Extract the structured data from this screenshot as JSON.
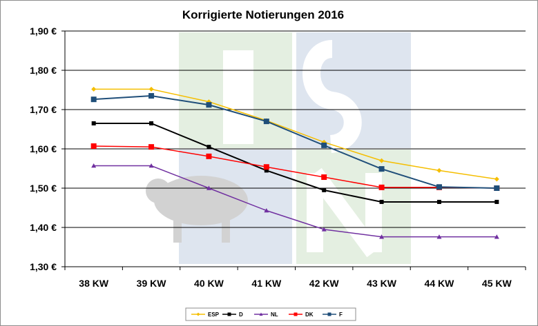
{
  "chart_data": {
    "type": "line",
    "title": "Korrigierte Notierungen 2016",
    "xlabel": "",
    "ylabel": "",
    "categories": [
      "38 KW",
      "39 KW",
      "40 KW",
      "41 KW",
      "42 KW",
      "43 KW",
      "44 KW",
      "45 KW"
    ],
    "ylim": [
      1.3,
      1.9
    ],
    "yticks": [
      "1,30 €",
      "1,40 €",
      "1,50 €",
      "1,60 €",
      "1,70 €",
      "1,80 €",
      "1,90 €"
    ],
    "grid": true,
    "legend_position": "bottom",
    "series": [
      {
        "name": "ESP",
        "color": "#F5BE00",
        "marker": "diamond",
        "values": [
          1.752,
          1.752,
          1.72,
          1.672,
          1.617,
          1.57,
          1.545,
          1.523
        ]
      },
      {
        "name": "D",
        "color": "#000000",
        "marker": "square",
        "values": [
          1.665,
          1.665,
          1.605,
          1.545,
          1.495,
          1.465,
          1.465,
          1.465
        ]
      },
      {
        "name": "NL",
        "color": "#7030A0",
        "marker": "triangle",
        "values": [
          1.557,
          1.557,
          1.5,
          1.443,
          1.395,
          1.376,
          1.376,
          1.376
        ]
      },
      {
        "name": "DK",
        "color": "#FF0000",
        "marker": "square",
        "values": [
          1.607,
          1.605,
          1.581,
          1.554,
          1.528,
          1.502,
          1.502,
          1.5
        ]
      },
      {
        "name": "F",
        "color": "#1F4E79",
        "marker": "square",
        "values": [
          1.726,
          1.735,
          1.712,
          1.67,
          1.609,
          1.549,
          1.503,
          1.5
        ]
      }
    ]
  },
  "watermark": {
    "logo_letters": "ISN",
    "colors": {
      "green": "#E3EFE0",
      "blue": "#DDE4EE",
      "pig": "#D0D0D0"
    }
  }
}
